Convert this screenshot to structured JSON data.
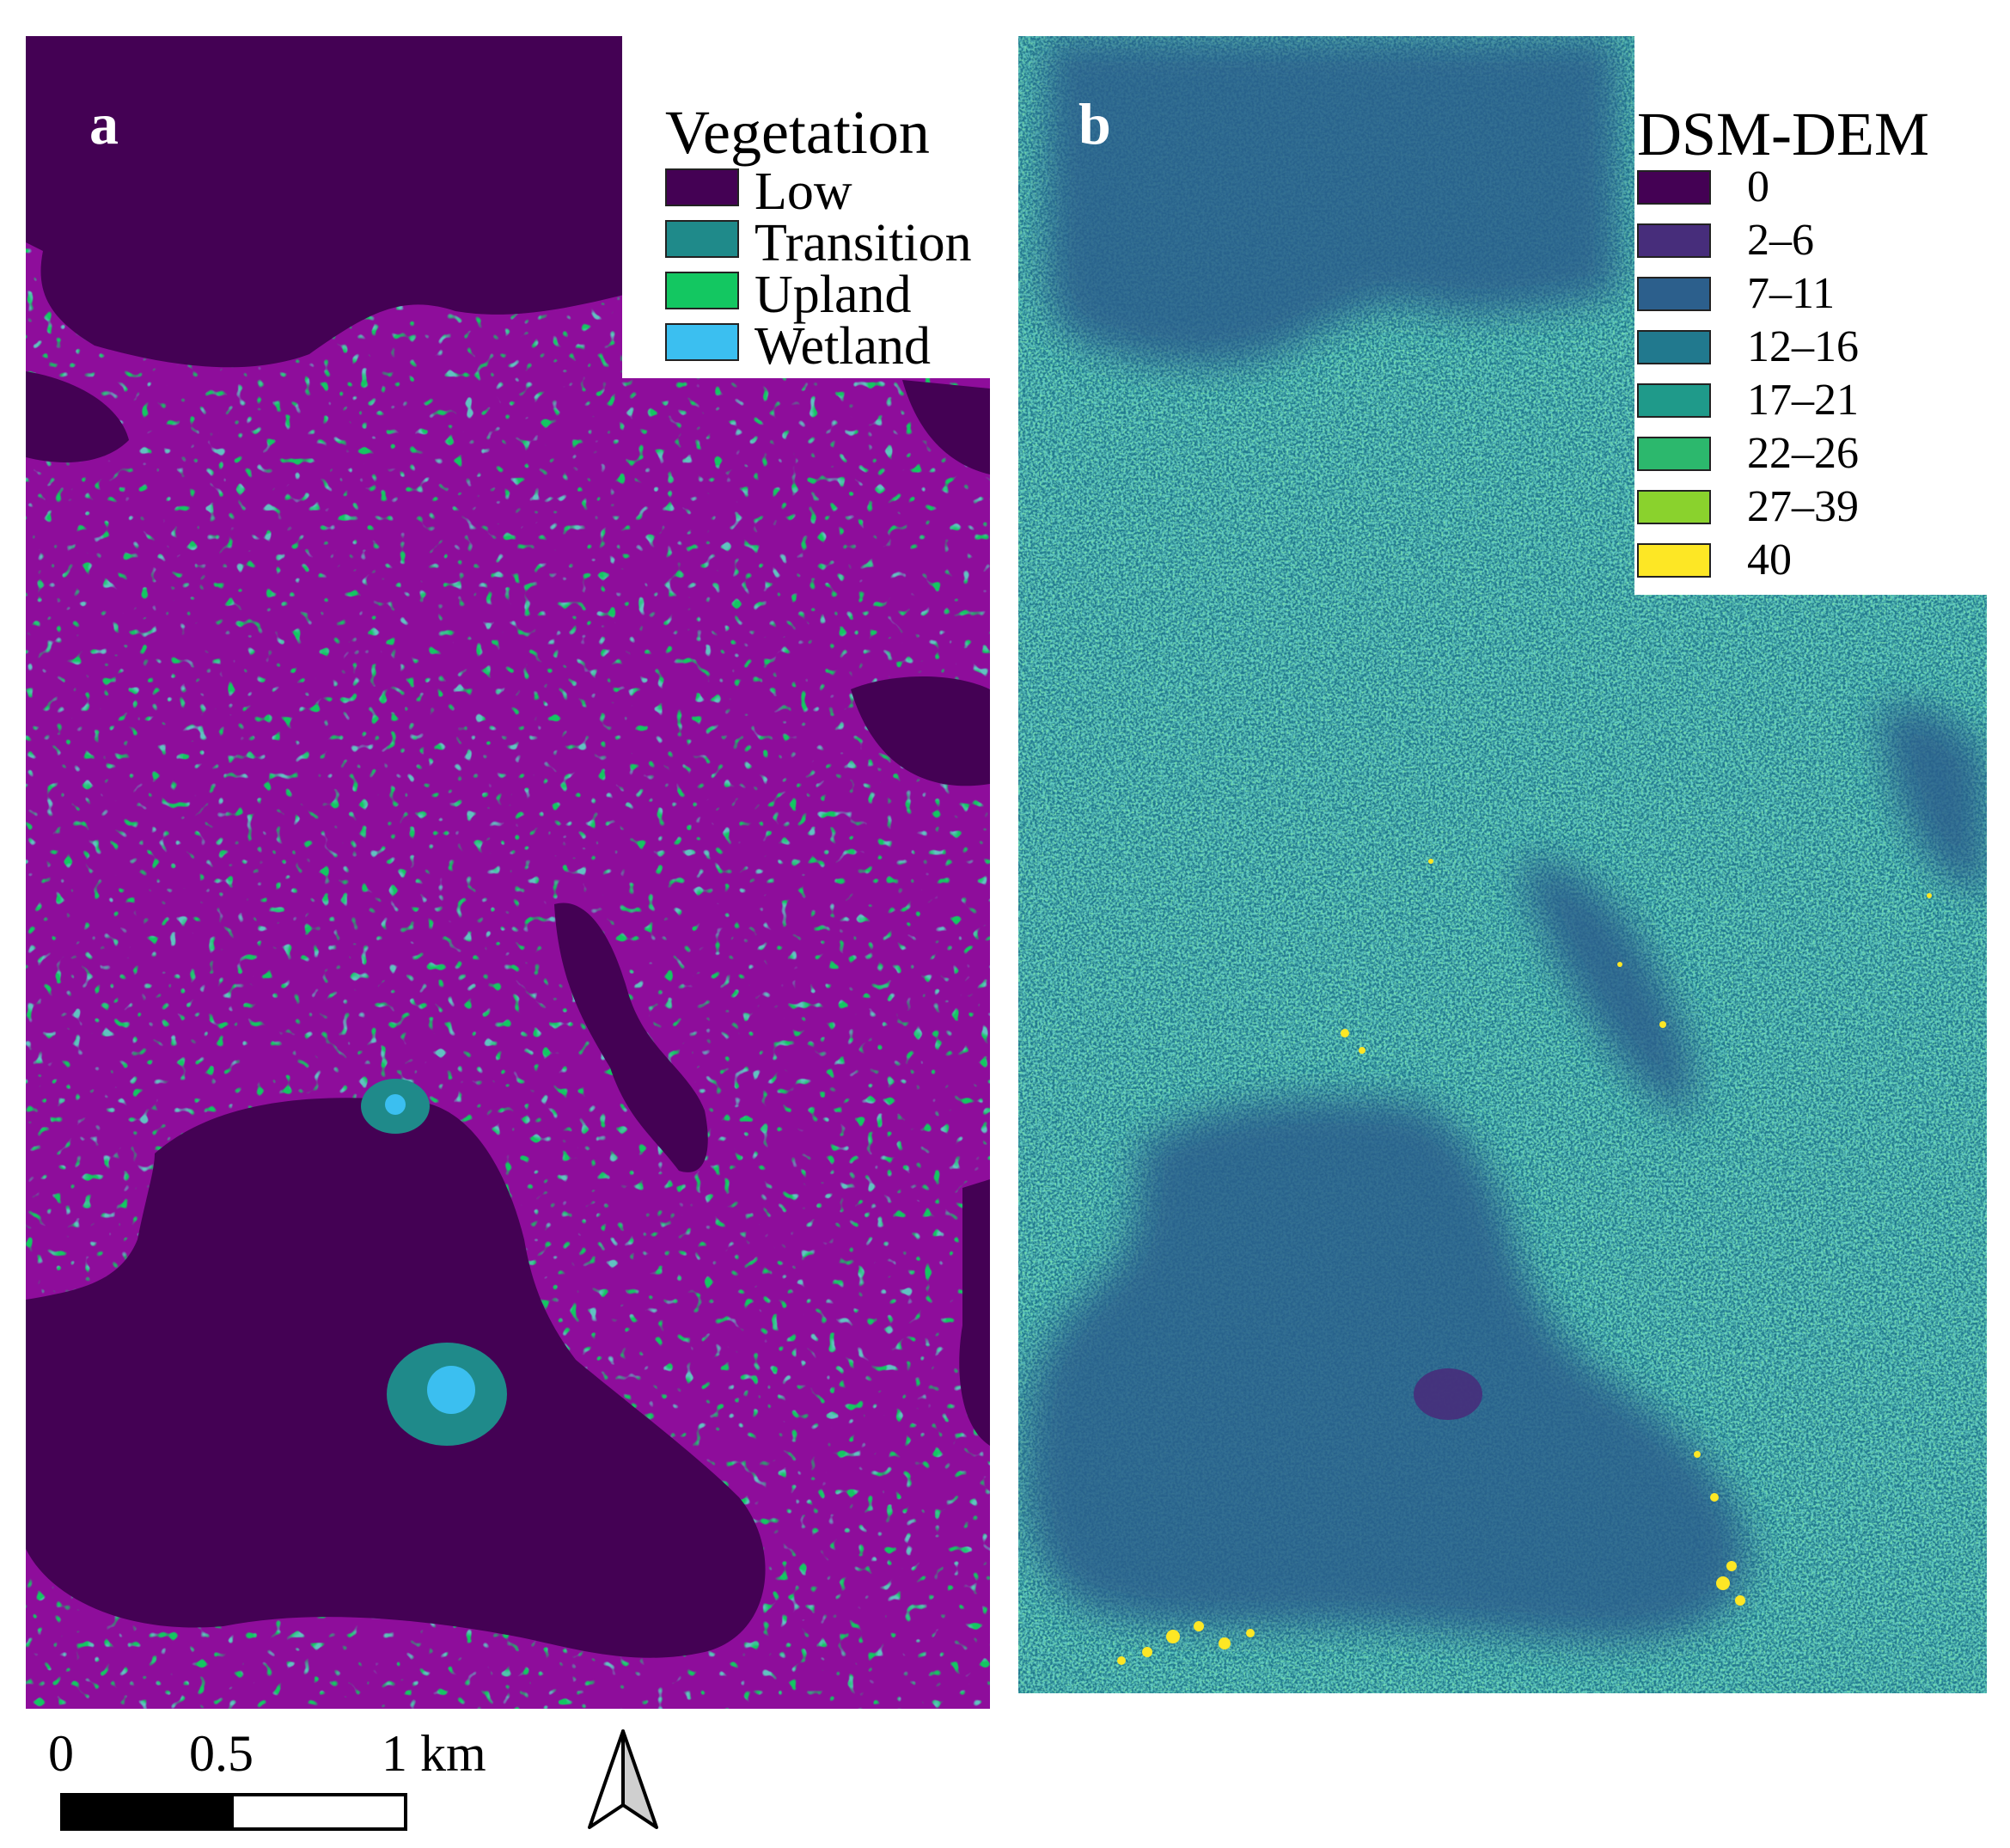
{
  "panel_a": {
    "label": "a",
    "legend": {
      "title": "Vegetation",
      "items": [
        {
          "label": "Low",
          "color": "#440154"
        },
        {
          "label": "Transition",
          "color": "#1f8a8a"
        },
        {
          "label": "Upland",
          "color": "#13c761"
        },
        {
          "label": "Wetland",
          "color": "#3bbff0"
        }
      ]
    }
  },
  "panel_b": {
    "label": "b",
    "legend": {
      "title": "DSM-DEM",
      "items": [
        {
          "label": "0",
          "color": "#440154"
        },
        {
          "label": "2–6",
          "color": "#472d7b"
        },
        {
          "label": "7–11",
          "color": "#2c5f8c"
        },
        {
          "label": "12–16",
          "color": "#21798e"
        },
        {
          "label": "17–21",
          "color": "#1f9a8a"
        },
        {
          "label": "22–26",
          "color": "#2cb86d"
        },
        {
          "label": "27–39",
          "color": "#8ad22d"
        },
        {
          "label": "40",
          "color": "#fde725"
        }
      ]
    }
  },
  "scale_bar": {
    "ticks": [
      "0",
      "0.5",
      "1 km"
    ]
  },
  "north_arrow": {
    "icon": "north-arrow-icon"
  }
}
